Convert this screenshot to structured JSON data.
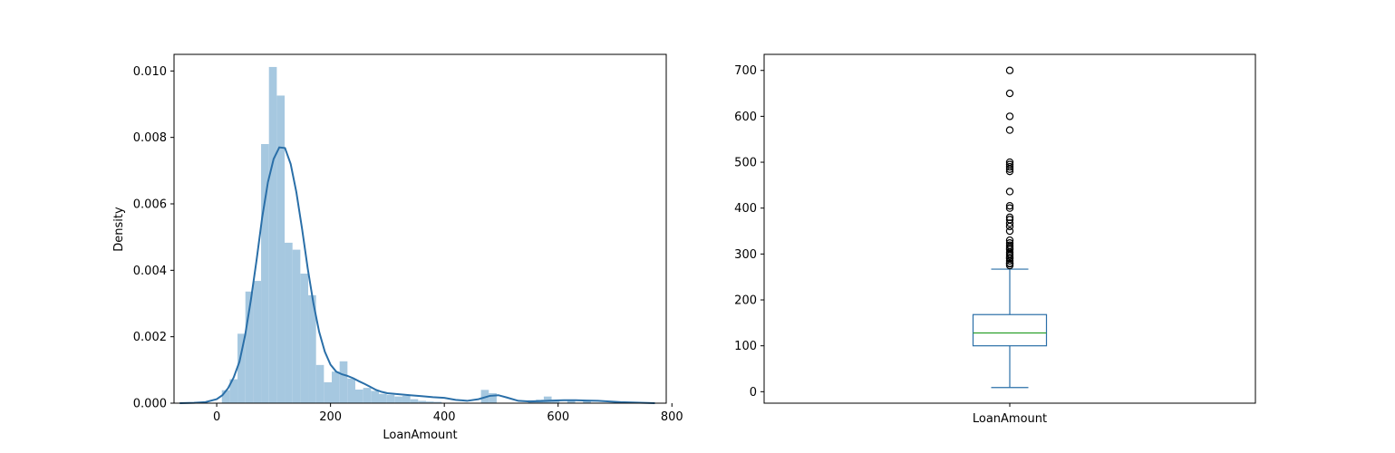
{
  "chart_data": [
    {
      "type": "histogram",
      "xlabel": "LoanAmount",
      "ylabel": "Density",
      "xlim": [
        -75,
        790
      ],
      "ylim": [
        0,
        0.0105
      ],
      "x_ticks": [
        0,
        200,
        400,
        600,
        800
      ],
      "y_ticks": [
        0.0,
        0.002,
        0.004,
        0.006,
        0.008,
        0.01
      ],
      "y_tick_labels": [
        "0.000",
        "0.002",
        "0.004",
        "0.006",
        "0.008",
        "0.010"
      ],
      "grid": false,
      "colors": {
        "bars": "#a6c8e0",
        "kde": "#2a6fa8"
      },
      "bin_width": 13.8,
      "bins": [
        {
          "x0": 9.0,
          "value": 0.00039
        },
        {
          "x0": 22.8,
          "value": 0.00072
        },
        {
          "x0": 36.6,
          "value": 0.00209
        },
        {
          "x0": 50.4,
          "value": 0.00336
        },
        {
          "x0": 64.2,
          "value": 0.00368
        },
        {
          "x0": 78.0,
          "value": 0.0078
        },
        {
          "x0": 91.8,
          "value": 0.01012
        },
        {
          "x0": 105.6,
          "value": 0.00926
        },
        {
          "x0": 119.4,
          "value": 0.00483
        },
        {
          "x0": 133.2,
          "value": 0.00462
        },
        {
          "x0": 147.0,
          "value": 0.0039
        },
        {
          "x0": 160.8,
          "value": 0.00325
        },
        {
          "x0": 174.6,
          "value": 0.00115
        },
        {
          "x0": 188.4,
          "value": 0.00063
        },
        {
          "x0": 202.2,
          "value": 0.00095
        },
        {
          "x0": 216.0,
          "value": 0.00126
        },
        {
          "x0": 229.8,
          "value": 0.00074
        },
        {
          "x0": 243.6,
          "value": 0.00041
        },
        {
          "x0": 257.4,
          "value": 0.00046
        },
        {
          "x0": 271.2,
          "value": 0.00037
        },
        {
          "x0": 285.0,
          "value": 0.00028
        },
        {
          "x0": 298.8,
          "value": 0.00025
        },
        {
          "x0": 312.6,
          "value": 0.0002
        },
        {
          "x0": 326.4,
          "value": 0.00022
        },
        {
          "x0": 340.2,
          "value": 0.00012
        },
        {
          "x0": 354.0,
          "value": 7e-05
        },
        {
          "x0": 367.8,
          "value": 5e-05
        },
        {
          "x0": 381.6,
          "value": 4e-05
        },
        {
          "x0": 464.4,
          "value": 0.0004
        },
        {
          "x0": 478.2,
          "value": 0.0003
        },
        {
          "x0": 547.2,
          "value": 9e-05
        },
        {
          "x0": 561.0,
          "value": 0.00011
        },
        {
          "x0": 574.8,
          "value": 0.0002
        },
        {
          "x0": 588.6,
          "value": 9e-05
        },
        {
          "x0": 616.2,
          "value": 8e-05
        },
        {
          "x0": 643.8,
          "value": 7e-05
        }
      ],
      "kde": [
        [
          -65,
          0.0
        ],
        [
          -40,
          1e-05
        ],
        [
          -20,
          3e-05
        ],
        [
          0,
          0.00012
        ],
        [
          10,
          0.00024
        ],
        [
          20,
          0.00045
        ],
        [
          30,
          0.00078
        ],
        [
          40,
          0.00125
        ],
        [
          50,
          0.00205
        ],
        [
          60,
          0.0031
        ],
        [
          70,
          0.0043
        ],
        [
          80,
          0.0056
        ],
        [
          90,
          0.00665
        ],
        [
          100,
          0.00735
        ],
        [
          110,
          0.0077
        ],
        [
          120,
          0.00768
        ],
        [
          130,
          0.0072
        ],
        [
          140,
          0.00635
        ],
        [
          150,
          0.00525
        ],
        [
          160,
          0.00405
        ],
        [
          170,
          0.003
        ],
        [
          180,
          0.00215
        ],
        [
          190,
          0.00155
        ],
        [
          200,
          0.00116
        ],
        [
          210,
          0.00095
        ],
        [
          220,
          0.00087
        ],
        [
          230,
          0.00082
        ],
        [
          240,
          0.00075
        ],
        [
          250,
          0.00066
        ],
        [
          260,
          0.00058
        ],
        [
          270,
          0.00049
        ],
        [
          280,
          0.0004
        ],
        [
          290,
          0.00034
        ],
        [
          300,
          0.0003
        ],
        [
          320,
          0.00027
        ],
        [
          340,
          0.00024
        ],
        [
          360,
          0.00021
        ],
        [
          380,
          0.00018
        ],
        [
          400,
          0.00016
        ],
        [
          420,
          0.0001
        ],
        [
          440,
          7e-05
        ],
        [
          460,
          0.00012
        ],
        [
          480,
          0.00022
        ],
        [
          495,
          0.00024
        ],
        [
          510,
          0.00017
        ],
        [
          530,
          7e-05
        ],
        [
          550,
          5e-05
        ],
        [
          570,
          6e-05
        ],
        [
          590,
          8e-05
        ],
        [
          610,
          9e-05
        ],
        [
          630,
          9e-05
        ],
        [
          650,
          8e-05
        ],
        [
          670,
          7e-05
        ],
        [
          690,
          5e-05
        ],
        [
          710,
          3e-05
        ],
        [
          730,
          2e-05
        ],
        [
          750,
          1e-05
        ],
        [
          770,
          0.0
        ]
      ]
    },
    {
      "type": "box",
      "xlabel": "LoanAmount",
      "ylim": [
        -25,
        735
      ],
      "y_ticks": [
        0,
        100,
        200,
        300,
        400,
        500,
        600,
        700
      ],
      "grid": false,
      "colors": {
        "box": "#2a6fa8",
        "median": "#2ca02c",
        "fliers": "#000000"
      },
      "box": {
        "whisker_low": 9,
        "q1": 100,
        "median": 128,
        "q3": 168,
        "whisker_high": 267
      },
      "outliers": [
        275,
        279,
        280,
        285,
        290,
        292,
        296,
        300,
        304,
        310,
        312,
        315,
        319,
        324,
        330,
        350,
        360,
        367,
        375,
        380,
        400,
        405,
        436,
        480,
        485,
        490,
        495,
        500,
        570,
        600,
        650,
        700
      ]
    }
  ]
}
